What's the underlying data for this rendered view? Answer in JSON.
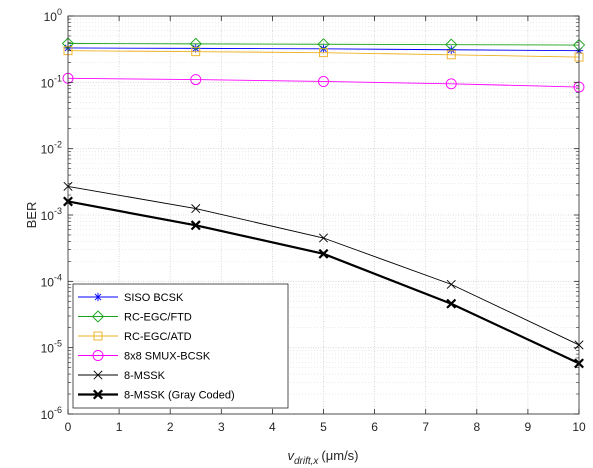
{
  "chart_data": {
    "type": "line",
    "xlabel": "(μm/s)",
    "xlabel_var": "v",
    "xlabel_sub": "drift,x",
    "ylabel": "BER",
    "x_ticks": [
      "0",
      "1",
      "2",
      "3",
      "4",
      "5",
      "6",
      "7",
      "8",
      "9",
      "10"
    ],
    "xlim": [
      0,
      10
    ],
    "ylim": [
      1e-06,
      1
    ],
    "y_scale": "log",
    "y_ticks": [
      {
        "base": "10",
        "exp": "0"
      },
      {
        "base": "10",
        "exp": "-1"
      },
      {
        "base": "10",
        "exp": "-2"
      },
      {
        "base": "10",
        "exp": "-3"
      },
      {
        "base": "10",
        "exp": "-4"
      },
      {
        "base": "10",
        "exp": "-5"
      },
      {
        "base": "10",
        "exp": "-6"
      }
    ],
    "grid": true,
    "legend_position": "bottom-left",
    "x": [
      0,
      2.5,
      5,
      7.5,
      10
    ],
    "series": [
      {
        "name": "SISO BCSK",
        "color": "#0000FF",
        "marker": "asterisk",
        "line_weight": "thin",
        "values": [
          0.33,
          0.325,
          0.32,
          0.31,
          0.3
        ]
      },
      {
        "name": "RC-EGC/FTD",
        "color": "#1aa31a",
        "marker": "diamond",
        "line_weight": "thin",
        "values": [
          0.385,
          0.38,
          0.375,
          0.37,
          0.365
        ]
      },
      {
        "name": "RC-EGC/ATD",
        "color": "#EDB120",
        "marker": "square",
        "line_weight": "thin",
        "values": [
          0.3,
          0.29,
          0.28,
          0.26,
          0.24
        ]
      },
      {
        "name": "8x8 SMUX-BCSK",
        "color": "#FF00FF",
        "marker": "circle",
        "line_weight": "thin",
        "values": [
          0.115,
          0.11,
          0.103,
          0.095,
          0.085
        ]
      },
      {
        "name": "8-MSSK",
        "color": "#000000",
        "marker": "x",
        "line_weight": "thin",
        "values": [
          0.0027,
          0.00125,
          0.00045,
          9e-05,
          1.1e-05
        ]
      },
      {
        "name": "8-MSSK (Gray Coded)",
        "color": "#000000",
        "marker": "x",
        "line_weight": "thick",
        "values": [
          0.0016,
          0.0007,
          0.00026,
          4.6e-05,
          5.8e-06
        ]
      }
    ]
  }
}
